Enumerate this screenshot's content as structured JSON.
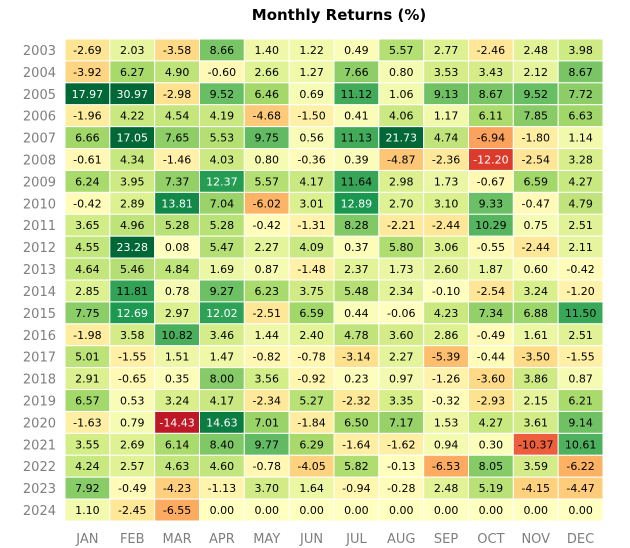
{
  "chart_data": {
    "type": "heatmap",
    "title": "Monthly Returns (%)",
    "xlabel": "",
    "ylabel": "",
    "x": [
      "JAN",
      "FEB",
      "MAR",
      "APR",
      "MAY",
      "JUN",
      "JUL",
      "AUG",
      "SEP",
      "OCT",
      "NOV",
      "DEC"
    ],
    "y": [
      "2003",
      "2004",
      "2005",
      "2006",
      "2007",
      "2008",
      "2009",
      "2010",
      "2011",
      "2012",
      "2013",
      "2014",
      "2015",
      "2016",
      "2017",
      "2018",
      "2019",
      "2020",
      "2021",
      "2022",
      "2023",
      "2024"
    ],
    "values": [
      [
        "-2.69",
        "2.03",
        "-3.58",
        "8.66",
        "1.40",
        "1.22",
        "0.49",
        "5.57",
        "2.77",
        "-2.46",
        "2.48",
        "3.98"
      ],
      [
        "-3.92",
        "6.27",
        "4.90",
        "-0.60",
        "2.66",
        "1.27",
        "7.66",
        "0.80",
        "3.53",
        "3.43",
        "2.12",
        "8.67"
      ],
      [
        "17.97",
        "30.97",
        "-2.98",
        "9.52",
        "6.46",
        "0.69",
        "11.12",
        "1.06",
        "9.13",
        "8.67",
        "9.52",
        "7.72"
      ],
      [
        "-1.96",
        "4.22",
        "4.54",
        "4.19",
        "-4.68",
        "-1.50",
        "0.41",
        "4.06",
        "1.17",
        "6.11",
        "7.85",
        "6.63"
      ],
      [
        "6.66",
        "17.05",
        "7.65",
        "5.53",
        "9.75",
        "0.56",
        "11.13",
        "21.73",
        "4.74",
        "-6.94",
        "-1.80",
        "1.14"
      ],
      [
        "-0.61",
        "4.34",
        "-1.46",
        "4.03",
        "0.80",
        "-0.36",
        "0.39",
        "-4.87",
        "-2.36",
        "-12.20",
        "-2.54",
        "3.28"
      ],
      [
        "6.24",
        "3.95",
        "7.37",
        "12.37",
        "5.57",
        "4.17",
        "11.64",
        "2.98",
        "1.73",
        "-0.67",
        "6.59",
        "4.27"
      ],
      [
        "-0.42",
        "2.89",
        "13.81",
        "7.04",
        "-6.02",
        "3.01",
        "12.89",
        "2.70",
        "3.10",
        "9.33",
        "-0.47",
        "4.79"
      ],
      [
        "3.65",
        "4.96",
        "5.28",
        "5.28",
        "-0.42",
        "-1.31",
        "8.28",
        "-2.21",
        "-2.44",
        "10.29",
        "0.75",
        "2.51"
      ],
      [
        "4.55",
        "23.28",
        "0.08",
        "5.47",
        "2.27",
        "4.09",
        "0.37",
        "5.80",
        "3.06",
        "-0.55",
        "-2.44",
        "2.11"
      ],
      [
        "4.64",
        "5.46",
        "4.84",
        "1.69",
        "0.87",
        "-1.48",
        "2.37",
        "1.73",
        "2.60",
        "1.87",
        "0.60",
        "-0.42"
      ],
      [
        "2.85",
        "11.81",
        "0.78",
        "9.27",
        "6.23",
        "3.75",
        "5.48",
        "2.34",
        "-0.10",
        "-2.54",
        "3.24",
        "-1.20"
      ],
      [
        "7.75",
        "12.69",
        "2.97",
        "12.02",
        "-2.51",
        "6.59",
        "0.44",
        "-0.06",
        "4.23",
        "7.34",
        "6.88",
        "11.50"
      ],
      [
        "-1.98",
        "3.58",
        "10.82",
        "3.46",
        "1.44",
        "2.40",
        "4.78",
        "3.60",
        "2.86",
        "-0.49",
        "1.61",
        "2.51"
      ],
      [
        "5.01",
        "-1.55",
        "1.51",
        "1.47",
        "-0.82",
        "-0.78",
        "-3.14",
        "2.27",
        "-5.39",
        "-0.44",
        "-3.50",
        "-1.55"
      ],
      [
        "2.91",
        "-0.65",
        "0.35",
        "8.00",
        "3.56",
        "-0.92",
        "0.23",
        "0.97",
        "-1.26",
        "-3.60",
        "3.86",
        "0.87"
      ],
      [
        "6.57",
        "0.53",
        "3.24",
        "4.17",
        "-2.34",
        "5.27",
        "-2.32",
        "3.35",
        "-0.32",
        "-2.93",
        "2.15",
        "6.21"
      ],
      [
        "-1.63",
        "0.79",
        "-14.43",
        "14.63",
        "7.01",
        "-1.84",
        "6.50",
        "7.17",
        "1.53",
        "4.27",
        "3.61",
        "9.14"
      ],
      [
        "3.55",
        "2.69",
        "6.14",
        "8.40",
        "9.77",
        "6.29",
        "-1.64",
        "-1.62",
        "0.94",
        "0.30",
        "-10.37",
        "10.61"
      ],
      [
        "4.24",
        "2.57",
        "4.63",
        "4.60",
        "-0.78",
        "-4.05",
        "5.82",
        "-0.13",
        "-6.53",
        "8.05",
        "3.59",
        "-6.22"
      ],
      [
        "7.92",
        "-0.49",
        "-4.23",
        "-1.13",
        "3.70",
        "1.64",
        "-0.94",
        "-0.28",
        "2.48",
        "5.19",
        "-4.15",
        "-4.47"
      ],
      [
        "1.10",
        "-2.45",
        "-6.55",
        "0.00",
        "0.00",
        "0.00",
        "0.00",
        "0.00",
        "0.00",
        "0.00",
        "0.00",
        "0.00"
      ]
    ],
    "colormap": "RdYlGn",
    "color_range": [
      -16,
      16
    ],
    "grid": false
  }
}
